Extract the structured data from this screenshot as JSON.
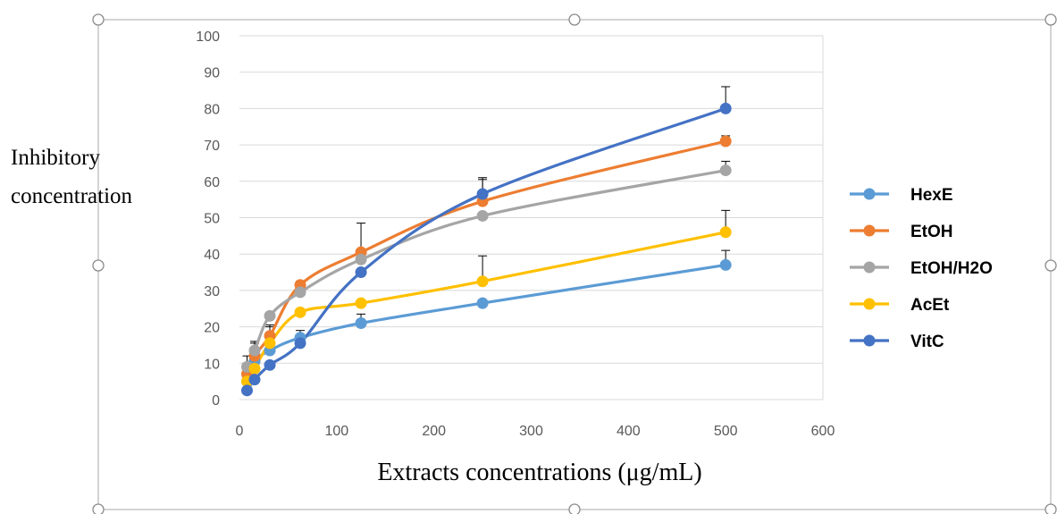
{
  "chart_data": {
    "type": "line",
    "xlabel": "Extracts concentrations (μg/mL)",
    "ylabel_lines": [
      "Inhibitory",
      "concentration"
    ],
    "xlim": [
      0,
      600
    ],
    "ylim": [
      0,
      100
    ],
    "x_ticks": [
      "0",
      "100",
      "200",
      "300",
      "400",
      "500",
      "600"
    ],
    "y_ticks": [
      "0",
      "10",
      "20",
      "30",
      "40",
      "50",
      "60",
      "70",
      "80",
      "90",
      "100"
    ],
    "grid": "horizontal",
    "legend_position": "right",
    "series": [
      {
        "name": "HexE",
        "color": "#5B9BD5",
        "points": [
          {
            "x": 7.8,
            "y": 5.0
          },
          {
            "x": 15.6,
            "y": 10.5
          },
          {
            "x": 31.25,
            "y": 13.5
          },
          {
            "x": 62.5,
            "y": 17.0
          },
          {
            "x": 125,
            "y": 21.0
          },
          {
            "x": 250,
            "y": 26.5
          },
          {
            "x": 500,
            "y": 37.0
          }
        ],
        "errors": [
          1.5,
          2.5,
          2.5,
          2.0,
          2.5,
          0,
          4.0
        ]
      },
      {
        "name": "EtOH",
        "color": "#ED7D31",
        "points": [
          {
            "x": 7.8,
            "y": 7.0
          },
          {
            "x": 15.6,
            "y": 12.0
          },
          {
            "x": 31.25,
            "y": 17.5
          },
          {
            "x": 62.5,
            "y": 31.5
          },
          {
            "x": 125,
            "y": 40.5
          },
          {
            "x": 250,
            "y": 54.5
          },
          {
            "x": 500,
            "y": 71.0
          }
        ],
        "errors": [
          3.0,
          3.5,
          3.0,
          1.0,
          8.0,
          6.0,
          1.5
        ]
      },
      {
        "name": "EtOH/H2O",
        "color": "#A5A5A5",
        "points": [
          {
            "x": 7.8,
            "y": 9.0
          },
          {
            "x": 15.6,
            "y": 13.5
          },
          {
            "x": 31.25,
            "y": 23.0
          },
          {
            "x": 62.5,
            "y": 29.5
          },
          {
            "x": 125,
            "y": 38.5
          },
          {
            "x": 250,
            "y": 50.5
          },
          {
            "x": 500,
            "y": 63.0
          }
        ],
        "errors": [
          3.0,
          2.5,
          0,
          2.0,
          0,
          0,
          2.5
        ]
      },
      {
        "name": "AcEt",
        "color": "#FFC000",
        "points": [
          {
            "x": 7.8,
            "y": 5.0
          },
          {
            "x": 15.6,
            "y": 8.5
          },
          {
            "x": 31.25,
            "y": 15.5
          },
          {
            "x": 62.5,
            "y": 24.0
          },
          {
            "x": 125,
            "y": 26.5
          },
          {
            "x": 250,
            "y": 32.5
          },
          {
            "x": 500,
            "y": 46.0
          }
        ],
        "errors": [
          2.5,
          3.5,
          4.5,
          0,
          0,
          7.0,
          6.0
        ]
      },
      {
        "name": "VitC",
        "color": "#4472C4",
        "points": [
          {
            "x": 7.8,
            "y": 2.5
          },
          {
            "x": 15.6,
            "y": 5.5
          },
          {
            "x": 31.25,
            "y": 9.5
          },
          {
            "x": 62.5,
            "y": 15.5
          },
          {
            "x": 125,
            "y": 35.0
          },
          {
            "x": 250,
            "y": 56.5
          },
          {
            "x": 500,
            "y": 80.0
          }
        ],
        "errors": [
          0,
          0,
          0,
          2.0,
          0,
          4.5,
          6.0
        ]
      }
    ]
  }
}
